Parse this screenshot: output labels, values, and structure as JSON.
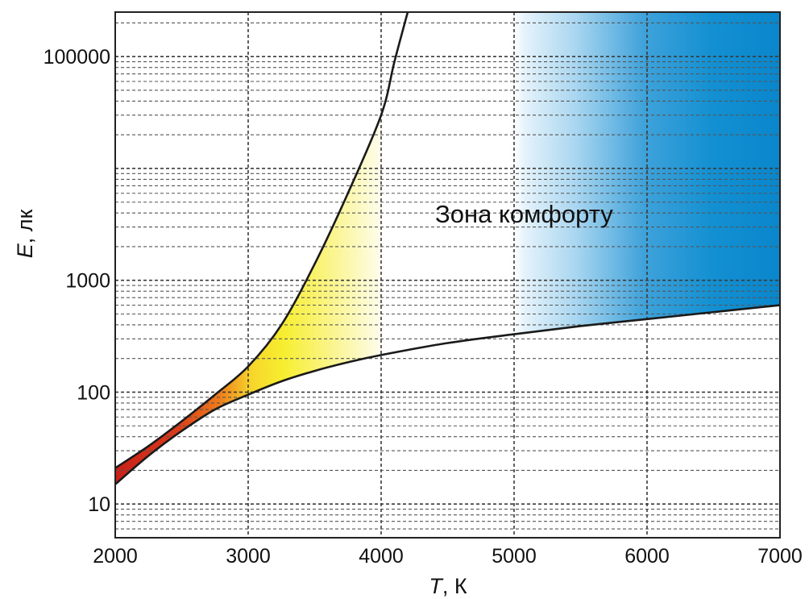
{
  "chart_data": {
    "type": "area",
    "title": "",
    "xlabel": {
      "symbol": "T",
      "unit": ", К"
    },
    "ylabel": {
      "symbol": "E",
      "unit": ", лк"
    },
    "xlim": [
      2000,
      7000
    ],
    "ylim": [
      5,
      250000
    ],
    "yscale": "log",
    "grid": true,
    "x_ticks": [
      "2000",
      "3000",
      "4000",
      "5000",
      "6000",
      "7000"
    ],
    "y_ticks": [
      {
        "value": 10,
        "label": "10"
      },
      {
        "value": 100,
        "label": "100"
      },
      {
        "value": 1000,
        "label": "1000"
      },
      {
        "value": 100000,
        "label": "100000"
      }
    ],
    "annotation": "Зона комфорту",
    "series": [
      {
        "role": "upper_boundary",
        "x": [
          2000,
          2250,
          2500,
          2750,
          3000,
          3250,
          3500,
          3750,
          4000,
          4100,
          4200
        ],
        "y": [
          21,
          33,
          55,
          95,
          170,
          400,
          1400,
          6000,
          30000,
          90000,
          250000
        ]
      },
      {
        "role": "lower_boundary",
        "x": [
          2000,
          2250,
          2500,
          2750,
          3000,
          3250,
          3500,
          3750,
          4000,
          4500,
          5000,
          5500,
          6000,
          6500,
          7000
        ],
        "y": [
          15,
          27,
          45,
          70,
          95,
          125,
          155,
          185,
          215,
          275,
          330,
          390,
          450,
          520,
          600
        ]
      }
    ],
    "colors": {
      "red": "#c8201a",
      "orange": "#ee7a1a",
      "yellow": "#f7ee30",
      "pale_yellow": "#fbf7c0",
      "blue": "#0a86cc",
      "light_blue": "#bfe0f3",
      "curve": "#1a1a1a",
      "grid": "#3a3a3a"
    }
  }
}
